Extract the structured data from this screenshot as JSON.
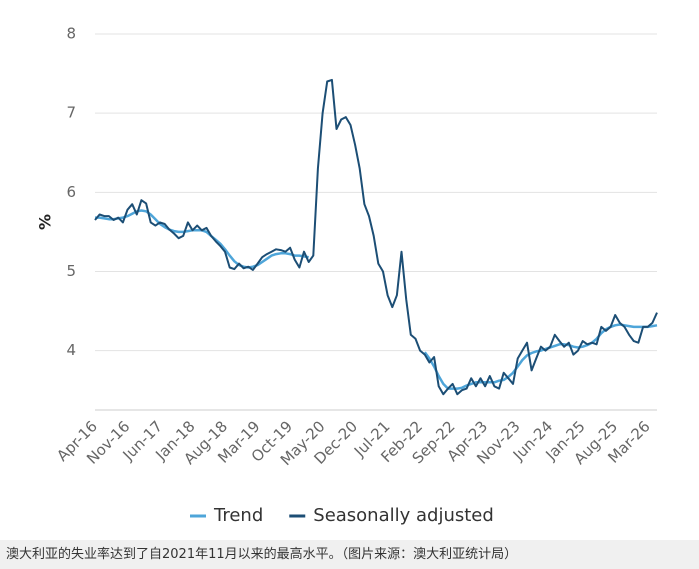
{
  "chart_data": {
    "type": "line",
    "y_label": "%",
    "categories": [
      "Apr-16",
      null,
      null,
      null,
      null,
      null,
      null,
      "Nov-16",
      null,
      null,
      null,
      null,
      null,
      null,
      "Jun-17",
      null,
      null,
      null,
      null,
      null,
      null,
      "Jan-18",
      null,
      null,
      null,
      null,
      null,
      null,
      "Aug-18",
      null,
      null,
      null,
      null,
      null,
      null,
      "Mar-19",
      null,
      null,
      null,
      null,
      null,
      null,
      "Oct-19",
      null,
      null,
      null,
      null,
      null,
      null,
      "May-20",
      null,
      null,
      null,
      null,
      null,
      null,
      "Dec-20",
      null,
      null,
      null,
      null,
      null,
      null,
      "Jul-21",
      null,
      null,
      null,
      null,
      null,
      null,
      "Feb-22",
      null,
      null,
      null,
      null,
      null,
      null,
      "Sep-22",
      null,
      null,
      null,
      null,
      null,
      null,
      "Apr-23",
      null,
      null,
      null,
      null,
      null,
      null,
      "Nov-23",
      null,
      null,
      null,
      null,
      null,
      null,
      "Jun-24",
      null,
      null,
      null,
      null,
      null,
      null,
      "Jan-25",
      null,
      null,
      null,
      null,
      null,
      null,
      "Aug-25",
      null,
      null,
      null,
      null,
      null,
      null,
      "Mar-26",
      null,
      null
    ],
    "series": [
      {
        "name": "Trend",
        "color": "#4ea5d9",
        "values": [
          5.68,
          5.68,
          5.67,
          5.66,
          5.66,
          5.67,
          5.68,
          5.7,
          5.73,
          5.76,
          5.77,
          5.76,
          5.72,
          5.66,
          5.6,
          5.56,
          5.53,
          5.51,
          5.5,
          5.5,
          5.51,
          5.52,
          5.52,
          5.52,
          5.5,
          5.45,
          5.4,
          5.35,
          5.28,
          5.2,
          5.13,
          5.08,
          5.06,
          5.05,
          5.06,
          5.08,
          5.12,
          5.16,
          5.2,
          5.22,
          5.23,
          5.23,
          5.22,
          5.2,
          5.2,
          5.19,
          5.18,
          null,
          null,
          null,
          null,
          null,
          null,
          null,
          null,
          null,
          null,
          null,
          null,
          null,
          null,
          null,
          null,
          null,
          null,
          null,
          null,
          null,
          null,
          null,
          null,
          3.98,
          3.9,
          3.8,
          3.68,
          3.58,
          3.52,
          3.52,
          3.52,
          3.53,
          3.56,
          3.58,
          3.6,
          3.6,
          3.6,
          3.6,
          3.6,
          3.62,
          3.63,
          3.67,
          3.72,
          3.8,
          3.88,
          3.94,
          3.97,
          3.99,
          4.0,
          4.02,
          4.04,
          4.06,
          4.08,
          4.08,
          4.07,
          4.05,
          4.04,
          4.05,
          4.07,
          4.1,
          4.15,
          4.22,
          4.27,
          4.3,
          4.32,
          4.33,
          4.32,
          4.31,
          4.3,
          4.3,
          4.3,
          4.3,
          4.31,
          4.32
        ]
      },
      {
        "name": "Seasonally adjusted",
        "color": "#1c4e75",
        "values": [
          5.65,
          5.72,
          5.7,
          5.7,
          5.65,
          5.68,
          5.62,
          5.78,
          5.85,
          5.72,
          5.9,
          5.86,
          5.62,
          5.58,
          5.62,
          5.6,
          5.53,
          5.48,
          5.42,
          5.45,
          5.62,
          5.52,
          5.58,
          5.52,
          5.55,
          5.45,
          5.38,
          5.32,
          5.25,
          5.05,
          5.03,
          5.1,
          5.04,
          5.06,
          5.02,
          5.1,
          5.18,
          5.22,
          5.25,
          5.28,
          5.27,
          5.25,
          5.3,
          5.15,
          5.05,
          5.25,
          5.12,
          5.2,
          6.3,
          7.0,
          7.4,
          7.42,
          6.8,
          6.92,
          6.95,
          6.85,
          6.6,
          6.3,
          5.85,
          5.7,
          5.45,
          5.1,
          5.0,
          4.7,
          4.55,
          4.7,
          5.25,
          4.65,
          4.2,
          4.15,
          4.0,
          3.95,
          3.85,
          3.92,
          3.55,
          3.45,
          3.52,
          3.58,
          3.45,
          3.5,
          3.52,
          3.65,
          3.55,
          3.65,
          3.55,
          3.68,
          3.55,
          3.52,
          3.72,
          3.65,
          3.58,
          3.9,
          4.0,
          4.1,
          3.75,
          3.9,
          4.05,
          4.0,
          4.05,
          4.2,
          4.12,
          4.05,
          4.1,
          3.95,
          4.0,
          4.12,
          4.08,
          4.1,
          4.08,
          4.3,
          4.25,
          4.3,
          4.45,
          4.35,
          4.3,
          4.2,
          4.12,
          4.1,
          4.3,
          4.3,
          4.35,
          4.48
        ]
      }
    ],
    "ylim": [
      3.25,
      8
    ],
    "yticks": [
      4,
      5,
      6,
      7,
      8
    ],
    "grid": true
  },
  "caption": "澳大利亚的失业率达到了自2021年11月以来的最高水平。（图片来源：澳大利亚统计局）"
}
